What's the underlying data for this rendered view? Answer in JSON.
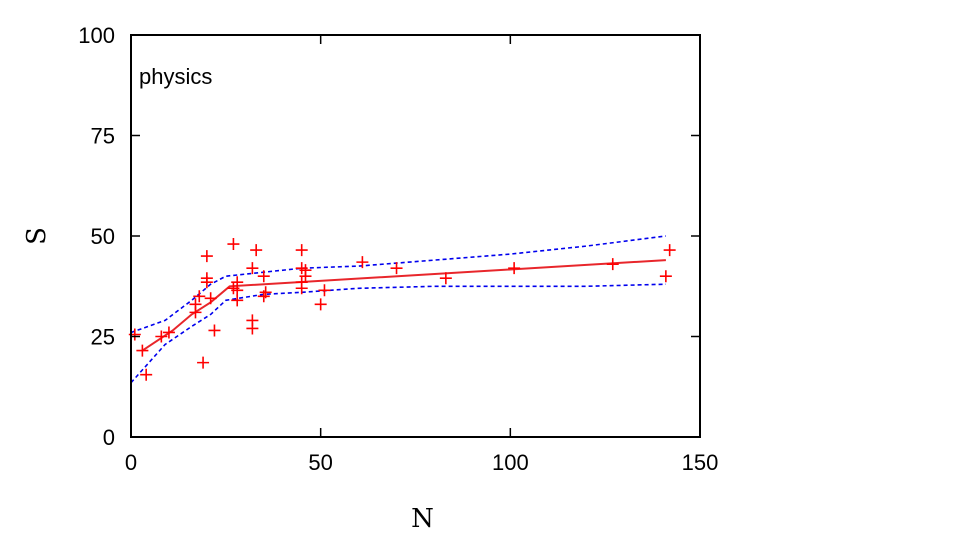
{
  "chart_data": {
    "type": "scatter",
    "title": "",
    "annotation": "physics",
    "xlabel": "N",
    "ylabel": "S",
    "xlim": [
      0,
      150
    ],
    "ylim": [
      0,
      100
    ],
    "xticks": [
      0,
      50,
      100,
      150
    ],
    "yticks": [
      0,
      25,
      50,
      75,
      100
    ],
    "grid": false,
    "colors": {
      "points": "#ff0000",
      "fit": "#e8262b",
      "band": "#0000ee",
      "frame": "#000000"
    },
    "points": [
      [
        1,
        25.5
      ],
      [
        3,
        21.5
      ],
      [
        4,
        15.5
      ],
      [
        8,
        25
      ],
      [
        10,
        26
      ],
      [
        17,
        31
      ],
      [
        17,
        33
      ],
      [
        18,
        35
      ],
      [
        19,
        18.5
      ],
      [
        20,
        38.5
      ],
      [
        20,
        39.5
      ],
      [
        20,
        45
      ],
      [
        21,
        34.5
      ],
      [
        22,
        26.5
      ],
      [
        27,
        48
      ],
      [
        27,
        37
      ],
      [
        28,
        34
      ],
      [
        28,
        36.5
      ],
      [
        28,
        38.5
      ],
      [
        32,
        42
      ],
      [
        32,
        27
      ],
      [
        32,
        29
      ],
      [
        33,
        46.5
      ],
      [
        35,
        40
      ],
      [
        35,
        35
      ],
      [
        35.5,
        36
      ],
      [
        45,
        46.5
      ],
      [
        45,
        42
      ],
      [
        45,
        38.5
      ],
      [
        45,
        37
      ],
      [
        46,
        41.5
      ],
      [
        46,
        40
      ],
      [
        50,
        33
      ],
      [
        51,
        36.5
      ],
      [
        61,
        43.5
      ],
      [
        70,
        42
      ],
      [
        83,
        39.5
      ],
      [
        101,
        42
      ],
      [
        127,
        43
      ],
      [
        141,
        40
      ],
      [
        142,
        46.5
      ]
    ],
    "fit": {
      "x": [
        3,
        11,
        16,
        21,
        26,
        141
      ],
      "y": [
        21.5,
        26.5,
        30.5,
        33.5,
        37.5,
        44
      ]
    },
    "band_upper": {
      "x": [
        0,
        9,
        16,
        21,
        25,
        35,
        45,
        60,
        80,
        100,
        120,
        141
      ],
      "y": [
        26,
        29,
        34,
        38,
        40,
        41,
        42,
        42.5,
        44,
        45.5,
        47.5,
        50
      ]
    },
    "band_lower": {
      "x": [
        0,
        9,
        16,
        21,
        25,
        35,
        45,
        60,
        80,
        100,
        120,
        141
      ],
      "y": [
        13.5,
        23,
        27.5,
        30.5,
        34,
        35.5,
        36,
        37,
        37.5,
        37.5,
        37.5,
        38
      ]
    }
  }
}
